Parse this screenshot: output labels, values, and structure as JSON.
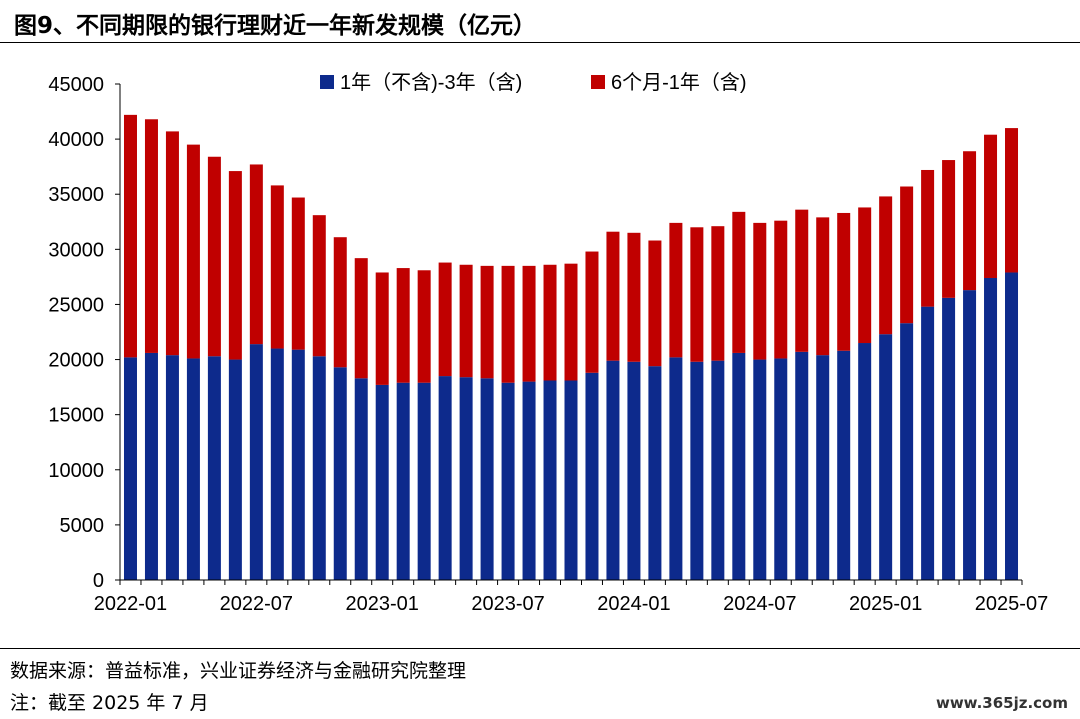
{
  "title": "图9、不同期限的银行理财近一年新发规模（亿元）",
  "source": "数据来源：普益标准，兴业证券经济与金融研究院整理",
  "note": "注：截至 2025 年 7 月",
  "watermark": "www.365jz.com",
  "chart_data": {
    "type": "bar",
    "stacked": true,
    "ylim": [
      0,
      45000
    ],
    "yticks": [
      "0",
      "5000",
      "10000",
      "15000",
      "20000",
      "25000",
      "30000",
      "35000",
      "40000",
      "45000"
    ],
    "xtick_labels": [
      "2022-01",
      "2022-07",
      "2023-01",
      "2023-07",
      "2024-01",
      "2024-07",
      "2025-01",
      "2025-07"
    ],
    "legend_position": "top-center",
    "categories": [
      "2022-01",
      "2022-02",
      "2022-03",
      "2022-04",
      "2022-05",
      "2022-06",
      "2022-07",
      "2022-08",
      "2022-09",
      "2022-10",
      "2022-11",
      "2022-12",
      "2023-01",
      "2023-02",
      "2023-03",
      "2023-04",
      "2023-05",
      "2023-06",
      "2023-07",
      "2023-08",
      "2023-09",
      "2023-10",
      "2023-11",
      "2023-12",
      "2024-01",
      "2024-02",
      "2024-03",
      "2024-04",
      "2024-05",
      "2024-06",
      "2024-07",
      "2024-08",
      "2024-09",
      "2024-10",
      "2024-11",
      "2024-12",
      "2025-01",
      "2025-02",
      "2025-03",
      "2025-04",
      "2025-05",
      "2025-06",
      "2025-07"
    ],
    "series": [
      {
        "name": "1年（不含)-3年（含)",
        "color": "#0d2a8c",
        "values": [
          20200,
          20600,
          20400,
          20100,
          20300,
          20000,
          21400,
          21000,
          20900,
          20300,
          19300,
          18300,
          17700,
          17900,
          17900,
          18500,
          18400,
          18300,
          17900,
          18000,
          18100,
          18100,
          18800,
          19900,
          19800,
          19400,
          20200,
          19800,
          19900,
          20600,
          20000,
          20100,
          20700,
          20400,
          20800,
          21500,
          22300,
          23300,
          24800,
          25600,
          26300,
          27400,
          27900
        ]
      },
      {
        "name": "6个月-1年（含)",
        "color": "#c00000",
        "values": [
          22000,
          21200,
          20300,
          19400,
          18100,
          17100,
          16300,
          14800,
          13800,
          12800,
          11800,
          10900,
          10200,
          10400,
          10200,
          10300,
          10200,
          10200,
          10600,
          10500,
          10500,
          10600,
          11000,
          11700,
          11700,
          11400,
          12200,
          12200,
          12200,
          12800,
          12400,
          12500,
          12900,
          12500,
          12500,
          12300,
          12500,
          12400,
          12400,
          12500,
          12600,
          13000,
          13100
        ]
      }
    ]
  }
}
